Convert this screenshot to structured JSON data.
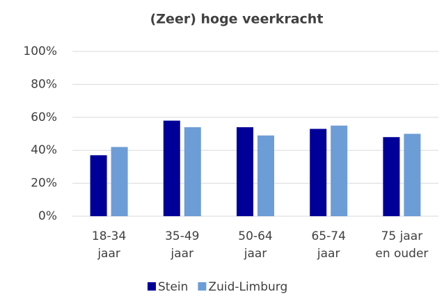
{
  "chart_data": {
    "type": "bar",
    "title": "(Zeer) hoge veerkracht",
    "categories": [
      [
        "18-34",
        "jaar"
      ],
      [
        "35-49",
        "jaar"
      ],
      [
        "50-64",
        "jaar"
      ],
      [
        "65-74",
        "jaar"
      ],
      [
        "75 jaar",
        "en ouder"
      ]
    ],
    "series": [
      {
        "name": "Stein",
        "color": "#000099",
        "values": [
          37,
          58,
          54,
          53,
          48
        ]
      },
      {
        "name": "Zuid-Limburg",
        "color": "#6d9dd6",
        "values": [
          42,
          54,
          49,
          55,
          50
        ]
      }
    ],
    "ylim": [
      0,
      100
    ],
    "yticks": [
      {
        "value": 0,
        "label": "0%"
      },
      {
        "value": 20,
        "label": "20%"
      },
      {
        "value": 40,
        "label": "40%"
      },
      {
        "value": 60,
        "label": "60%"
      },
      {
        "value": 80,
        "label": "80%"
      },
      {
        "value": 100,
        "label": "100%"
      }
    ],
    "grid": true,
    "legend": "bottom"
  }
}
